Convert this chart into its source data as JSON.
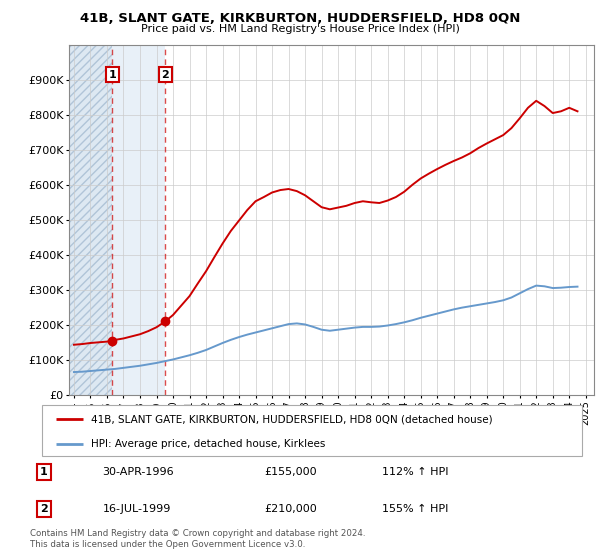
{
  "title": "41B, SLANT GATE, KIRKBURTON, HUDDERSFIELD, HD8 0QN",
  "subtitle": "Price paid vs. HM Land Registry's House Price Index (HPI)",
  "footnote": "Contains HM Land Registry data © Crown copyright and database right 2024.\nThis data is licensed under the Open Government Licence v3.0.",
  "legend_line1": "41B, SLANT GATE, KIRKBURTON, HUDDERSFIELD, HD8 0QN (detached house)",
  "legend_line2": "HPI: Average price, detached house, Kirklees",
  "marker1_date": "30-APR-1996",
  "marker1_price": "£155,000",
  "marker1_hpi": "112% ↑ HPI",
  "marker1_x": 1996.33,
  "marker1_y": 155000,
  "marker2_date": "16-JUL-1999",
  "marker2_price": "£210,000",
  "marker2_hpi": "155% ↑ HPI",
  "marker2_x": 1999.54,
  "marker2_y": 210000,
  "red_color": "#cc0000",
  "blue_color": "#6699cc",
  "hatch_region1_color": "#dde8f0",
  "hatch_region2_color": "#e0eaf5",
  "xlim": [
    1993.7,
    2025.5
  ],
  "ylim": [
    0,
    1000000
  ],
  "yticks": [
    0,
    100000,
    200000,
    300000,
    400000,
    500000,
    600000,
    700000,
    800000,
    900000
  ],
  "ytick_labels": [
    "£0",
    "£100K",
    "£200K",
    "£300K",
    "£400K",
    "£500K",
    "£600K",
    "£700K",
    "£800K",
    "£900K"
  ],
  "red_line_data_x": [
    1994.0,
    1994.5,
    1995.0,
    1995.5,
    1996.0,
    1996.33,
    1996.5,
    1997.0,
    1997.5,
    1998.0,
    1998.5,
    1999.0,
    1999.54,
    2000.0,
    2000.5,
    2001.0,
    2001.5,
    2002.0,
    2002.5,
    2003.0,
    2003.5,
    2004.0,
    2004.5,
    2005.0,
    2005.5,
    2006.0,
    2006.5,
    2007.0,
    2007.5,
    2008.0,
    2008.5,
    2009.0,
    2009.5,
    2010.0,
    2010.5,
    2011.0,
    2011.5,
    2012.0,
    2012.5,
    2013.0,
    2013.5,
    2014.0,
    2014.5,
    2015.0,
    2015.5,
    2016.0,
    2016.5,
    2017.0,
    2017.5,
    2018.0,
    2018.5,
    2019.0,
    2019.5,
    2020.0,
    2020.5,
    2021.0,
    2021.5,
    2022.0,
    2022.5,
    2023.0,
    2023.5,
    2024.0,
    2024.5
  ],
  "red_line_data_y": [
    143000,
    145000,
    148000,
    150000,
    152000,
    155000,
    157000,
    161000,
    167000,
    173000,
    182000,
    193000,
    210000,
    228000,
    255000,
    282000,
    318000,
    353000,
    393000,
    432000,
    468000,
    498000,
    528000,
    553000,
    565000,
    578000,
    585000,
    588000,
    582000,
    570000,
    553000,
    536000,
    530000,
    535000,
    540000,
    548000,
    553000,
    550000,
    548000,
    555000,
    565000,
    580000,
    600000,
    618000,
    632000,
    645000,
    657000,
    668000,
    678000,
    690000,
    705000,
    718000,
    730000,
    742000,
    762000,
    790000,
    820000,
    840000,
    825000,
    805000,
    810000,
    820000,
    810000
  ],
  "blue_line_data_x": [
    1994.0,
    1994.5,
    1995.0,
    1995.5,
    1996.0,
    1996.5,
    1997.0,
    1997.5,
    1998.0,
    1998.5,
    1999.0,
    1999.5,
    2000.0,
    2000.5,
    2001.0,
    2001.5,
    2002.0,
    2002.5,
    2003.0,
    2003.5,
    2004.0,
    2004.5,
    2005.0,
    2005.5,
    2006.0,
    2006.5,
    2007.0,
    2007.5,
    2008.0,
    2008.5,
    2009.0,
    2009.5,
    2010.0,
    2010.5,
    2011.0,
    2011.5,
    2012.0,
    2012.5,
    2013.0,
    2013.5,
    2014.0,
    2014.5,
    2015.0,
    2015.5,
    2016.0,
    2016.5,
    2017.0,
    2017.5,
    2018.0,
    2018.5,
    2019.0,
    2019.5,
    2020.0,
    2020.5,
    2021.0,
    2021.5,
    2022.0,
    2022.5,
    2023.0,
    2023.5,
    2024.0,
    2024.5
  ],
  "blue_line_data_y": [
    65000,
    66000,
    68000,
    70000,
    72000,
    74000,
    77000,
    80000,
    83000,
    87000,
    91000,
    96000,
    101000,
    107000,
    113000,
    120000,
    128000,
    138000,
    148000,
    157000,
    165000,
    172000,
    178000,
    184000,
    190000,
    196000,
    202000,
    204000,
    201000,
    194000,
    186000,
    183000,
    186000,
    189000,
    192000,
    194000,
    194000,
    195000,
    198000,
    202000,
    207000,
    213000,
    220000,
    226000,
    232000,
    238000,
    244000,
    249000,
    253000,
    257000,
    261000,
    265000,
    270000,
    278000,
    290000,
    302000,
    312000,
    310000,
    305000,
    306000,
    308000,
    309000
  ]
}
